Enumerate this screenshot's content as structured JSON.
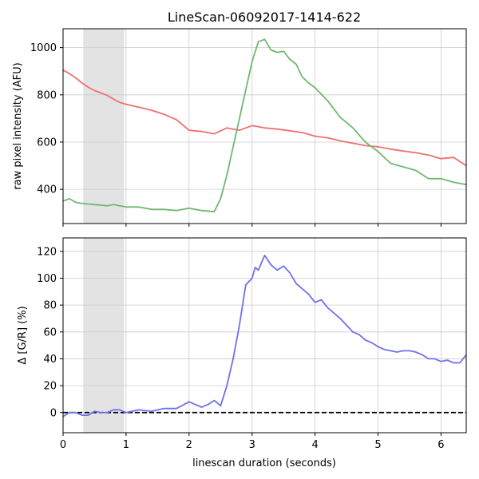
{
  "chart_data": [
    {
      "type": "line",
      "title": "LineScan-06092017-1414-622",
      "xlabel": "",
      "ylabel": "raw pixel intensity (AFU)",
      "xlim": [
        0,
        6.4
      ],
      "ylim": [
        255,
        1080
      ],
      "x_ticks": [
        0,
        1,
        2,
        3,
        4,
        5,
        6
      ],
      "x_tick_labels": [
        "",
        "",
        "",
        "",
        "",
        "",
        ""
      ],
      "y_ticks": [
        400,
        600,
        800,
        1000
      ],
      "grid": true,
      "shaded_region": [
        0.32,
        0.97
      ],
      "series": [
        {
          "color": "#f07070",
          "x": [
            0,
            0.1,
            0.2,
            0.3,
            0.4,
            0.5,
            0.6,
            0.7,
            0.8,
            0.9,
            1.0,
            1.2,
            1.4,
            1.6,
            1.8,
            2.0,
            2.2,
            2.4,
            2.6,
            2.8,
            3.0,
            3.2,
            3.4,
            3.6,
            3.8,
            4.0,
            4.2,
            4.4,
            4.6,
            4.8,
            5.0,
            5.2,
            5.4,
            5.6,
            5.8,
            6.0,
            6.2,
            6.4
          ],
          "values": [
            905,
            890,
            872,
            850,
            832,
            818,
            808,
            798,
            782,
            768,
            760,
            748,
            735,
            718,
            695,
            650,
            645,
            635,
            660,
            650,
            670,
            660,
            655,
            648,
            640,
            625,
            618,
            605,
            595,
            585,
            580,
            570,
            562,
            555,
            545,
            530,
            535,
            500
          ]
        },
        {
          "color": "#70b870",
          "x": [
            0,
            0.1,
            0.2,
            0.3,
            0.4,
            0.5,
            0.6,
            0.7,
            0.8,
            0.9,
            1.0,
            1.2,
            1.4,
            1.6,
            1.8,
            2.0,
            2.2,
            2.4,
            2.5,
            2.6,
            2.7,
            2.8,
            2.9,
            3.0,
            3.1,
            3.2,
            3.3,
            3.4,
            3.5,
            3.6,
            3.7,
            3.8,
            3.9,
            4.0,
            4.2,
            4.4,
            4.6,
            4.8,
            5.0,
            5.2,
            5.4,
            5.6,
            5.8,
            6.0,
            6.2,
            6.4
          ],
          "values": [
            350,
            360,
            345,
            340,
            338,
            335,
            333,
            330,
            335,
            330,
            325,
            325,
            315,
            315,
            310,
            320,
            310,
            305,
            360,
            460,
            580,
            700,
            820,
            940,
            1025,
            1035,
            990,
            980,
            985,
            950,
            930,
            875,
            850,
            830,
            775,
            705,
            660,
            600,
            560,
            510,
            495,
            480,
            445,
            445,
            430,
            420
          ]
        }
      ]
    },
    {
      "type": "line",
      "title": "",
      "xlabel": "linescan duration (seconds)",
      "ylabel": "Δ [G/R] (%)",
      "xlim": [
        0,
        6.4
      ],
      "ylim": [
        -15,
        130
      ],
      "x_ticks": [
        0,
        1,
        2,
        3,
        4,
        5,
        6
      ],
      "x_tick_labels": [
        "0",
        "1",
        "2",
        "3",
        "4",
        "5",
        "6"
      ],
      "y_ticks": [
        0,
        20,
        40,
        60,
        80,
        100,
        120
      ],
      "grid": true,
      "shaded_region": [
        0.32,
        0.97
      ],
      "baseline": 0,
      "series": [
        {
          "color": "#7070ee",
          "x": [
            0,
            0.1,
            0.2,
            0.3,
            0.4,
            0.5,
            0.6,
            0.7,
            0.8,
            0.9,
            1.0,
            1.2,
            1.4,
            1.6,
            1.8,
            2.0,
            2.1,
            2.2,
            2.3,
            2.4,
            2.5,
            2.6,
            2.7,
            2.8,
            2.9,
            3.0,
            3.05,
            3.1,
            3.2,
            3.3,
            3.4,
            3.5,
            3.6,
            3.7,
            3.8,
            3.9,
            4.0,
            4.1,
            4.2,
            4.3,
            4.4,
            4.5,
            4.6,
            4.7,
            4.8,
            4.9,
            5.0,
            5.1,
            5.2,
            5.3,
            5.4,
            5.5,
            5.6,
            5.7,
            5.8,
            5.9,
            6.0,
            6.1,
            6.2,
            6.3,
            6.4
          ],
          "values": [
            -3,
            0,
            0,
            -2,
            -2,
            1,
            0,
            0,
            2,
            2,
            0,
            2,
            1,
            3,
            3,
            8,
            6,
            4,
            6,
            9,
            5,
            20,
            40,
            65,
            95,
            100,
            108,
            106,
            117,
            110,
            106,
            109,
            104,
            96,
            92,
            88,
            82,
            84,
            78,
            74,
            70,
            65,
            60,
            58,
            54,
            52,
            49,
            47,
            46,
            45,
            46,
            46,
            45,
            43,
            40,
            40,
            38,
            39,
            37,
            37,
            43
          ]
        }
      ]
    }
  ]
}
